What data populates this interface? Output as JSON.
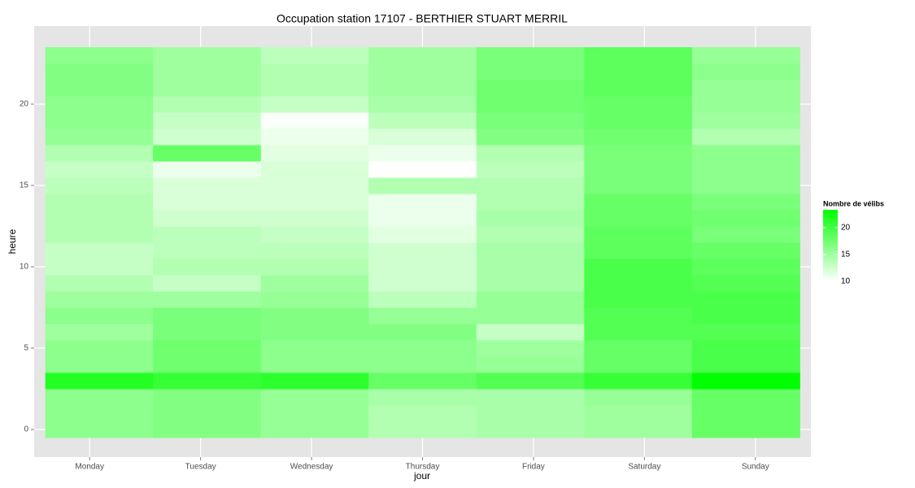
{
  "chart_data": {
    "type": "heatmap",
    "title": "Occupation station 17107 - BERTHIER STUART MERRIL",
    "x_label": "jour",
    "y_label": "heure",
    "legend_title": "Nombre de vélibs",
    "categories": [
      "Monday",
      "Tuesday",
      "Wednesday",
      "Thursday",
      "Friday",
      "Saturday",
      "Sunday"
    ],
    "y": [
      0,
      1,
      2,
      3,
      4,
      5,
      6,
      7,
      8,
      9,
      10,
      11,
      12,
      13,
      14,
      15,
      16,
      17,
      18,
      19,
      20,
      21,
      22,
      23
    ],
    "values": [
      [
        16,
        16,
        16,
        21.5,
        16,
        16,
        15,
        16,
        15,
        14,
        13,
        13,
        14,
        14,
        14,
        13.5,
        13,
        14,
        15.5,
        16,
        16,
        16.5,
        16.5,
        16
      ],
      [
        16.5,
        16.5,
        16.5,
        20.5,
        17.5,
        17.5,
        17,
        17,
        15,
        13,
        14,
        13.5,
        13.5,
        12.5,
        12,
        12,
        11,
        18,
        12.5,
        13,
        14,
        15,
        15,
        15
      ],
      [
        15.5,
        15.5,
        15.5,
        21,
        16,
        16,
        16.5,
        16.5,
        15.5,
        15,
        14,
        13.5,
        13,
        12.5,
        12,
        12,
        12,
        11.5,
        11,
        10.3,
        13,
        14,
        14,
        13.5
      ],
      [
        14,
        14,
        14.5,
        18,
        16,
        16,
        16.5,
        15.5,
        13.5,
        12.5,
        12.5,
        12.5,
        11.5,
        11,
        11,
        14,
        10,
        11,
        12,
        13.5,
        14.5,
        15,
        15,
        15
      ],
      [
        14.5,
        14.5,
        14.5,
        19,
        15.5,
        15,
        13,
        15.5,
        15.5,
        14.5,
        14.5,
        14.5,
        14,
        14.5,
        14,
        14,
        13.5,
        14,
        16.5,
        17,
        17.5,
        17.5,
        17,
        17
      ],
      [
        15,
        15,
        15.5,
        20.5,
        18,
        18,
        19,
        19,
        19.5,
        19.5,
        19.5,
        18.5,
        18.5,
        18,
        18,
        17,
        17,
        17,
        17.5,
        18,
        18,
        18.5,
        18.5,
        18.5
      ],
      [
        18,
        18,
        18,
        23.3,
        19.5,
        19.5,
        19,
        19.5,
        19.5,
        19,
        18.5,
        18,
        17,
        17.5,
        17,
        16,
        16,
        16,
        14,
        15,
        15.5,
        15.5,
        16,
        15.5
      ]
    ],
    "ylim": [
      -1.7,
      24.8
    ],
    "yticks": [
      0,
      5,
      10,
      15,
      20
    ],
    "colorlim": [
      10,
      23.3
    ],
    "colorticks": [
      10,
      15,
      20
    ],
    "low_color": "#ffffff",
    "high_color": "#00ff00",
    "grid": true
  }
}
